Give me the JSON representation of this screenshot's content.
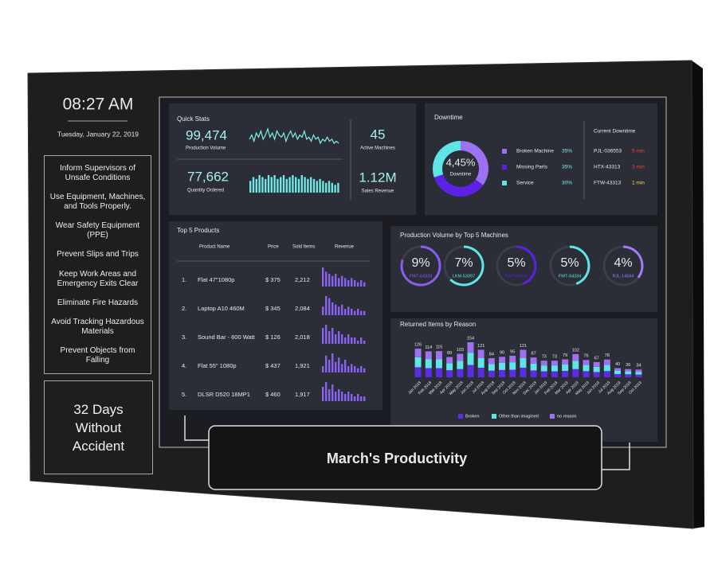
{
  "clock": {
    "time": "08:27 AM",
    "date": "Tuesday, January 22, 2019"
  },
  "safety_rules": [
    "Inform Supervisors of Unsafe Conditions",
    "Use Equipment, Machines, and Tools Properly.",
    "Wear Safety Equipment (PPE)",
    "Prevent Slips and Trips",
    "Keep Work Areas and Emergency Exits Clear",
    "Eliminate Fire Hazards",
    "Avoid Tracking Hazardous Materials",
    "Prevent Objects from Falling"
  ],
  "accident_counter": "32 Days Without Accident",
  "banner": "March's Productivity",
  "quick_stats": {
    "title": "Quick Stats",
    "production_volume": {
      "value": "99,474",
      "label": "Production Volume",
      "trend": [
        5,
        7,
        4,
        8,
        6,
        9,
        5,
        7,
        10,
        6,
        8,
        5,
        9,
        7,
        6,
        8,
        4,
        7,
        9,
        6,
        8,
        5,
        7,
        6,
        9,
        5,
        6,
        4,
        7,
        5,
        6,
        3,
        5,
        4,
        6,
        4,
        5,
        3,
        4,
        3
      ]
    },
    "quantity_ordered": {
      "value": "77,662",
      "label": "Quantity Ordered",
      "trend": [
        6,
        8,
        7,
        9,
        8,
        7,
        9,
        8,
        9,
        7,
        8,
        9,
        7,
        8,
        9,
        8,
        7,
        9,
        8,
        7,
        8,
        7,
        6,
        7,
        6,
        5,
        6,
        5,
        4,
        5
      ]
    },
    "active_machines": {
      "value": "45",
      "label": "Active Machines"
    },
    "sales_revenue": {
      "value": "1.12M",
      "label": "Sales Revenue"
    }
  },
  "downtime": {
    "title": "Downtime",
    "center_value": "4,45%",
    "center_label": "Downtime",
    "chart_data": {
      "type": "pie",
      "categories": [
        "Broken Machine",
        "Missing Parts",
        "Service"
      ],
      "values": [
        35,
        35,
        30
      ],
      "value_labels": [
        "35%",
        "35%",
        "30%"
      ],
      "colors": [
        "#9b72f2",
        "#5b22e6",
        "#5ee6e6"
      ]
    },
    "current_title": "Current Downtime",
    "current": [
      {
        "machine": "PJL-036553",
        "duration": "5 min"
      },
      {
        "machine": "HTX-43313",
        "duration": "3 min"
      },
      {
        "machine": "FTW-43313",
        "duration": "1 min"
      }
    ]
  },
  "top_products": {
    "title": "Top 5 Products",
    "headers": [
      "Product Name",
      "Price",
      "Sold Items",
      "Revenue"
    ],
    "rows": [
      {
        "rank": "1.",
        "name": "Flat 47\"1080p",
        "price": "$ 375",
        "sold": "2,212",
        "revenue": [
          9,
          7,
          6,
          5,
          6,
          4,
          5,
          4,
          3,
          4,
          3,
          2,
          3,
          2
        ]
      },
      {
        "rank": "2.",
        "name": "Laptop A10 460M",
        "price": "$ 345",
        "sold": "2,084",
        "revenue": [
          4,
          9,
          8,
          6,
          5,
          4,
          5,
          3,
          4,
          3,
          2,
          3,
          2,
          2
        ]
      },
      {
        "rank": "3.",
        "name": "Sound Bar - 600 Watt",
        "price": "$ 126",
        "sold": "2,018",
        "revenue": [
          5,
          6,
          4,
          5,
          3,
          4,
          3,
          2,
          3,
          2,
          2,
          1,
          2,
          1
        ]
      },
      {
        "rank": "4.",
        "name": "Flat 55\" 1080p",
        "price": "$ 437",
        "sold": "1,921",
        "revenue": [
          3,
          8,
          6,
          9,
          5,
          7,
          4,
          6,
          3,
          4,
          3,
          2,
          3,
          2
        ]
      },
      {
        "rank": "5.",
        "name": "DLSR D520 18MP1",
        "price": "$ 460",
        "sold": "1,917",
        "revenue": [
          6,
          8,
          5,
          7,
          4,
          5,
          4,
          3,
          4,
          3,
          2,
          3,
          2,
          2
        ]
      }
    ]
  },
  "machines": {
    "title": "Production Volume by Top 5 Machines",
    "items": [
      {
        "name": "FWT-64333",
        "value": 9,
        "label": "9%",
        "color": "#8a5cf0"
      },
      {
        "name": "LKM-53397",
        "value": 7,
        "label": "7%",
        "color": "#5ee6e6"
      },
      {
        "name": "FWT-64333",
        "value": 5,
        "label": "5%",
        "color": "#5b22e6"
      },
      {
        "name": "FWT-64334",
        "value": 5,
        "label": "5%",
        "color": "#5ee6e6"
      },
      {
        "name": "RJL-14564",
        "value": 4,
        "label": "4%",
        "color": "#a27df5"
      }
    ]
  },
  "returned": {
    "title": "Returned Items by Reason",
    "chart_data": {
      "type": "bar",
      "stacked": true,
      "categories": [
        "Jan 2018",
        "Feb 2018",
        "Mar 2018",
        "Apr 2018",
        "May 2018",
        "Jun 2018",
        "Jul 2018",
        "Aug 2018",
        "Sep 2018",
        "Oct 2018",
        "Nov 2018",
        "Dec 2018",
        "Jan 2019",
        "Feb 2019",
        "Mar 2019",
        "Apr 2019",
        "May 2019",
        "Jun 2019",
        "Jul 2019",
        "Aug 2019",
        "Sep 2019",
        "Oct 2019"
      ],
      "totals": [
        126,
        114,
        115,
        89,
        103,
        154,
        121,
        84,
        90,
        95,
        121,
        87,
        73,
        73,
        79,
        102,
        76,
        67,
        78,
        40,
        36,
        34
      ],
      "series": [
        {
          "name": "Broken",
          "color": "#5a2de0",
          "values": [
            44,
            40,
            40,
            31,
            36,
            54,
            42,
            29,
            32,
            33,
            42,
            30,
            26,
            26,
            28,
            36,
            27,
            23,
            27,
            14,
            13,
            12
          ]
        },
        {
          "name": "Other than imagined",
          "color": "#5ee6e6",
          "values": [
            44,
            40,
            40,
            31,
            36,
            54,
            42,
            29,
            32,
            33,
            42,
            30,
            26,
            26,
            28,
            36,
            27,
            23,
            27,
            14,
            13,
            12
          ]
        },
        {
          "name": "no reason",
          "color": "#a070f0",
          "values": [
            38,
            34,
            35,
            27,
            31,
            46,
            37,
            26,
            26,
            29,
            37,
            27,
            21,
            21,
            23,
            30,
            22,
            21,
            24,
            12,
            10,
            10
          ]
        }
      ]
    }
  }
}
